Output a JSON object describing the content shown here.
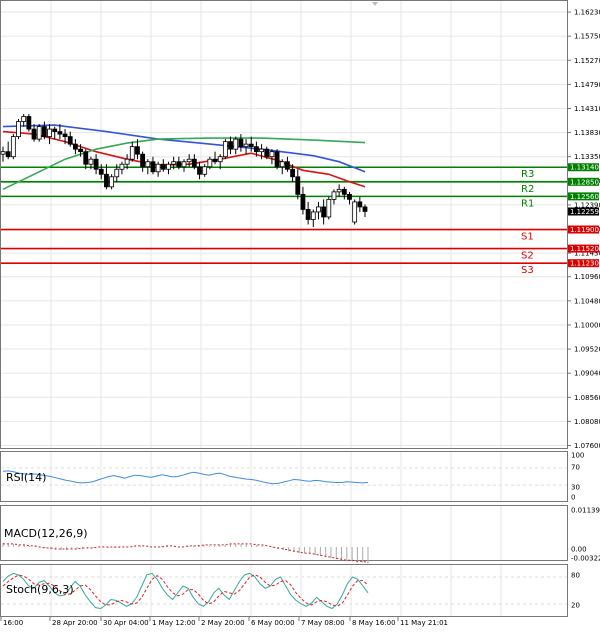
{
  "chart_data": {
    "type": "candlestick",
    "x_ticks": [
      "16:00",
      "28 Apr 20:00",
      "30 Apr 04:00",
      "1 May 12:00",
      "2 May 20:00",
      "6 May 00:00",
      "7 May 08:00",
      "8 May 16:00",
      "11 May 21:01"
    ],
    "y_ticks": [
      "1.16230",
      "1.15750",
      "1.15270",
      "1.14790",
      "1.14310",
      "1.13830",
      "1.13350",
      "1.12870",
      "1.12390",
      "1.11910",
      "1.11430",
      "1.10960",
      "1.10480",
      "1.10000",
      "1.09520",
      "1.09040",
      "1.08560",
      "1.08080",
      "1.07600"
    ],
    "ylim": [
      1.0755,
      1.1645
    ],
    "current_price": "1.12259",
    "levels": [
      {
        "name": "R3",
        "value": 1.1314,
        "price_label": "1.13140",
        "color": "#008000"
      },
      {
        "name": "R2",
        "value": 1.1285,
        "price_label": "1.12850",
        "color": "#008000"
      },
      {
        "name": "R1",
        "value": 1.1256,
        "price_label": "1.12560",
        "color": "#008000"
      },
      {
        "name": "S1",
        "value": 1.119,
        "price_label": "1.11900",
        "color": "#dd0000"
      },
      {
        "name": "S2",
        "value": 1.1152,
        "price_label": "1.11520",
        "color": "#dd0000"
      },
      {
        "name": "S3",
        "value": 1.1123,
        "price_label": "1.11230",
        "color": "#dd0000"
      }
    ],
    "candles": [
      [
        1.134,
        1.1355,
        1.1325,
        1.1345
      ],
      [
        1.1345,
        1.1365,
        1.133,
        1.1335
      ],
      [
        1.1335,
        1.138,
        1.133,
        1.1375
      ],
      [
        1.1375,
        1.141,
        1.137,
        1.1405
      ],
      [
        1.1405,
        1.142,
        1.1395,
        1.1415
      ],
      [
        1.1415,
        1.142,
        1.1385,
        1.139
      ],
      [
        1.139,
        1.14,
        1.1365,
        1.137
      ],
      [
        1.137,
        1.14,
        1.1365,
        1.1395
      ],
      [
        1.1395,
        1.1405,
        1.137,
        1.1375
      ],
      [
        1.1375,
        1.14,
        1.136,
        1.139
      ],
      [
        1.139,
        1.1395,
        1.137,
        1.1385
      ],
      [
        1.1385,
        1.14,
        1.137,
        1.138
      ],
      [
        1.138,
        1.139,
        1.136,
        1.1375
      ],
      [
        1.1375,
        1.1385,
        1.1355,
        1.136
      ],
      [
        1.136,
        1.137,
        1.134,
        1.135
      ],
      [
        1.135,
        1.136,
        1.1335,
        1.1345
      ],
      [
        1.1345,
        1.135,
        1.131,
        1.132
      ],
      [
        1.132,
        1.1335,
        1.131,
        1.133
      ],
      [
        1.133,
        1.134,
        1.13,
        1.131
      ],
      [
        1.131,
        1.132,
        1.129,
        1.13
      ],
      [
        1.13,
        1.132,
        1.127,
        1.1275
      ],
      [
        1.1275,
        1.13,
        1.127,
        1.1295
      ],
      [
        1.1295,
        1.132,
        1.1285,
        1.131
      ],
      [
        1.131,
        1.1325,
        1.13,
        1.132
      ],
      [
        1.132,
        1.134,
        1.131,
        1.133
      ],
      [
        1.133,
        1.1365,
        1.1325,
        1.1355
      ],
      [
        1.1355,
        1.137,
        1.133,
        1.134
      ],
      [
        1.134,
        1.1345,
        1.1305,
        1.1315
      ],
      [
        1.1315,
        1.133,
        1.13,
        1.1325
      ],
      [
        1.1325,
        1.1335,
        1.13,
        1.1305
      ],
      [
        1.1305,
        1.1325,
        1.1295,
        1.132
      ],
      [
        1.132,
        1.133,
        1.1305,
        1.131
      ],
      [
        1.131,
        1.1325,
        1.13,
        1.132
      ],
      [
        1.132,
        1.1335,
        1.131,
        1.1325
      ],
      [
        1.1325,
        1.1335,
        1.131,
        1.1315
      ],
      [
        1.1315,
        1.133,
        1.1305,
        1.1325
      ],
      [
        1.1325,
        1.134,
        1.1315,
        1.133
      ],
      [
        1.133,
        1.134,
        1.131,
        1.1315
      ],
      [
        1.1315,
        1.1325,
        1.129,
        1.13
      ],
      [
        1.13,
        1.132,
        1.1295,
        1.1315
      ],
      [
        1.1315,
        1.1335,
        1.131,
        1.133
      ],
      [
        1.133,
        1.1345,
        1.132,
        1.1325
      ],
      [
        1.1325,
        1.134,
        1.131,
        1.1335
      ],
      [
        1.1335,
        1.137,
        1.133,
        1.1365
      ],
      [
        1.1365,
        1.1375,
        1.134,
        1.135
      ],
      [
        1.135,
        1.1375,
        1.134,
        1.137
      ],
      [
        1.137,
        1.138,
        1.1345,
        1.1355
      ],
      [
        1.1355,
        1.137,
        1.134,
        1.136
      ],
      [
        1.136,
        1.1375,
        1.1345,
        1.1355
      ],
      [
        1.1355,
        1.1365,
        1.1335,
        1.1345
      ],
      [
        1.1345,
        1.136,
        1.133,
        1.135
      ],
      [
        1.135,
        1.1355,
        1.133,
        1.1335
      ],
      [
        1.1335,
        1.135,
        1.132,
        1.1345
      ],
      [
        1.1345,
        1.135,
        1.131,
        1.1315
      ],
      [
        1.1315,
        1.133,
        1.13,
        1.1325
      ],
      [
        1.1325,
        1.1335,
        1.1305,
        1.131
      ],
      [
        1.131,
        1.132,
        1.1285,
        1.1295
      ],
      [
        1.1295,
        1.131,
        1.125,
        1.126
      ],
      [
        1.126,
        1.1275,
        1.122,
        1.123
      ],
      [
        1.123,
        1.1245,
        1.12,
        1.121
      ],
      [
        1.121,
        1.123,
        1.1195,
        1.1225
      ],
      [
        1.1225,
        1.1245,
        1.121,
        1.1235
      ],
      [
        1.1235,
        1.125,
        1.12,
        1.1215
      ],
      [
        1.1215,
        1.1255,
        1.121,
        1.125
      ],
      [
        1.125,
        1.127,
        1.124,
        1.1265
      ],
      [
        1.1265,
        1.128,
        1.1255,
        1.127
      ],
      [
        1.127,
        1.1275,
        1.125,
        1.126
      ],
      [
        1.126,
        1.1265,
        1.124,
        1.125
      ],
      [
        1.1205,
        1.125,
        1.12,
        1.1245
      ],
      [
        1.1245,
        1.1255,
        1.1225,
        1.1235
      ],
      [
        1.1235,
        1.124,
        1.1215,
        1.1226
      ]
    ],
    "ma_series": [
      {
        "color": "#3355dd",
        "values": [
          [
            0,
            1.1395
          ],
          [
            10,
            1.1398
          ],
          [
            20,
            1.1385
          ],
          [
            30,
            1.137
          ],
          [
            40,
            1.136
          ],
          [
            50,
            1.135
          ],
          [
            60,
            1.1337
          ],
          [
            65,
            1.1325
          ],
          [
            70,
            1.1305
          ]
        ]
      },
      {
        "color": "#dd1111",
        "values": [
          [
            0,
            1.1385
          ],
          [
            6,
            1.138
          ],
          [
            12,
            1.1365
          ],
          [
            18,
            1.1345
          ],
          [
            24,
            1.133
          ],
          [
            30,
            1.1318
          ],
          [
            36,
            1.132
          ],
          [
            42,
            1.133
          ],
          [
            48,
            1.1342
          ],
          [
            53,
            1.1328
          ],
          [
            58,
            1.1308
          ],
          [
            63,
            1.13
          ],
          [
            67,
            1.1285
          ],
          [
            70,
            1.1275
          ]
        ]
      },
      {
        "color": "#33aa55",
        "values": [
          [
            0,
            1.127
          ],
          [
            6,
            1.13
          ],
          [
            12,
            1.133
          ],
          [
            18,
            1.135
          ],
          [
            24,
            1.1362
          ],
          [
            30,
            1.137
          ],
          [
            40,
            1.1372
          ],
          [
            50,
            1.1372
          ],
          [
            60,
            1.1368
          ],
          [
            70,
            1.1363
          ]
        ]
      }
    ],
    "indicators": [
      {
        "name": "RSI(14)",
        "ticks": [
          "100",
          "70",
          "30",
          "0"
        ],
        "ylim": [
          0,
          100
        ],
        "color": "#3a8ee6",
        "values": [
          62,
          63,
          61,
          58,
          56,
          55,
          56,
          54,
          52,
          50,
          47,
          44,
          41,
          39,
          36,
          35,
          36,
          38,
          42,
          46,
          50,
          52,
          49,
          46,
          50,
          53,
          52,
          50,
          48,
          51,
          54,
          52,
          49,
          50,
          53,
          57,
          60,
          58,
          55,
          53,
          56,
          58,
          54,
          50,
          48,
          46,
          44,
          43,
          41,
          38,
          35,
          33,
          34,
          37,
          40,
          43,
          42,
          40,
          39,
          41,
          40,
          38,
          37,
          36,
          36,
          38,
          37,
          36,
          35,
          36
        ]
      },
      {
        "name": "MACD(12,26,9)",
        "ticks": [
          "0.011391",
          "0.00",
          "-0.003223"
        ],
        "ylim": [
          -0.003223,
          0.011391
        ],
        "color": "#cc2222",
        "hist_values": [
          0.0004,
          0.0003,
          0.0003,
          0.0002,
          0.0002,
          0.0001,
          0.0001,
          0.0,
          -0.0001,
          -0.0002,
          -0.0002,
          -0.0003,
          -0.0003,
          -0.0002,
          -0.0002,
          -0.0002,
          -0.0001,
          -0.0001,
          0.0,
          0.0,
          -0.0001,
          -0.0001,
          -0.0001,
          0.0,
          0.0,
          0.0001,
          0.0001,
          0.0,
          0.0,
          0.0,
          0.0001,
          0.0001,
          0.0,
          0.0,
          0.0,
          0.0001,
          0.0001,
          0.0002,
          0.0002,
          0.0001,
          0.0001,
          0.0002,
          0.0002,
          0.0003,
          0.0003,
          0.0003,
          0.0003,
          0.0002,
          0.0002,
          0.0001,
          0.0,
          -0.0001,
          -0.0002,
          -0.0003,
          -0.0004,
          -0.0005,
          -0.0006,
          -0.0006,
          -0.0007,
          -0.0008,
          -0.0009,
          -0.001,
          -0.0011,
          -0.0012,
          -0.0013,
          -0.0014,
          -0.0014,
          -0.0015,
          -0.0015,
          -0.0016
        ],
        "signal_values": [
          0.0003,
          0.0003,
          0.0003,
          0.0002,
          0.0002,
          0.0001,
          0.0001,
          0.0,
          -0.0001,
          -0.0001,
          -0.0002,
          -0.0002,
          -0.0002,
          -0.0002,
          -0.0002,
          -0.0001,
          -0.0001,
          -0.0001,
          0.0,
          0.0,
          0.0,
          0.0,
          0.0,
          0.0,
          0.0,
          0.0001,
          0.0001,
          0.0001,
          0.0,
          0.0,
          0.0,
          0.0001,
          0.0001,
          0.0,
          0.0,
          0.0001,
          0.0001,
          0.0001,
          0.0002,
          0.0002,
          0.0002,
          0.0002,
          0.0002,
          0.0003,
          0.0003,
          0.0003,
          0.0003,
          0.0003,
          0.0002,
          0.0002,
          0.0001,
          0.0,
          -0.0001,
          -0.0002,
          -0.0003,
          -0.0004,
          -0.0005,
          -0.0006,
          -0.0006,
          -0.0007,
          -0.0008,
          -0.0009,
          -0.001,
          -0.0011,
          -0.0012,
          -0.0013,
          -0.0013,
          -0.0014,
          -0.0014,
          -0.0015
        ]
      },
      {
        "name": "Stoch(9,6,3)",
        "ticks": [
          "80",
          "20"
        ],
        "ylim": [
          0,
          100
        ],
        "main_color": "#33aa99",
        "signal_color": "#dd2222",
        "main_values": [
          70,
          82,
          88,
          85,
          75,
          60,
          55,
          68,
          72,
          60,
          45,
          38,
          40,
          55,
          70,
          60,
          40,
          25,
          12,
          10,
          18,
          30,
          28,
          22,
          15,
          20,
          35,
          60,
          85,
          88,
          75,
          55,
          40,
          30,
          45,
          60,
          55,
          35,
          20,
          15,
          25,
          45,
          55,
          40,
          30,
          50,
          70,
          85,
          88,
          80,
          65,
          55,
          60,
          75,
          80,
          60,
          40,
          28,
          20,
          15,
          22,
          35,
          25,
          15,
          10,
          20,
          40,
          65,
          80,
          75,
          60,
          45
        ],
        "signal_values": [
          60,
          70,
          78,
          84,
          82,
          75,
          65,
          62,
          65,
          66,
          60,
          50,
          42,
          42,
          50,
          60,
          62,
          52,
          38,
          25,
          18,
          18,
          25,
          28,
          25,
          20,
          22,
          35,
          55,
          75,
          83,
          75,
          58,
          45,
          38,
          42,
          52,
          52,
          42,
          28,
          20,
          25,
          38,
          48,
          45,
          42,
          50,
          65,
          80,
          85,
          80,
          68,
          60,
          62,
          70,
          72,
          62,
          45,
          32,
          22,
          18,
          25,
          28,
          25,
          18,
          15,
          22,
          40,
          60,
          72,
          72,
          62
        ]
      }
    ]
  }
}
